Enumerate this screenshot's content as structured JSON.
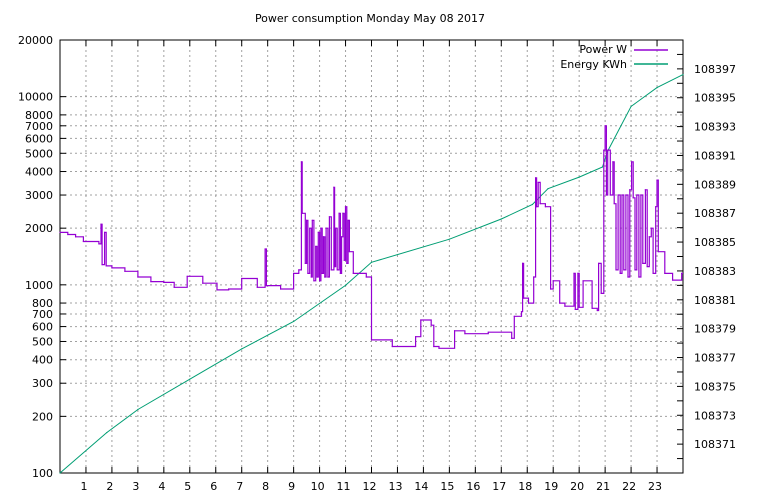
{
  "chart_data": {
    "type": "line",
    "title": "Power consumption Monday May 08 2017",
    "xlabel": "",
    "ylabel": "",
    "y2label": "",
    "xlim": [
      0,
      24
    ],
    "ylim": [
      100,
      20000
    ],
    "yscale": "log",
    "y2lim": [
      108369,
      108399
    ],
    "grid": true,
    "legend_position": "top-right",
    "x_ticks": [
      "1",
      "2",
      "3",
      "4",
      "5",
      "6",
      "7",
      "8",
      "9",
      "10",
      "11",
      "12",
      "13",
      "14",
      "15",
      "16",
      "17",
      "18",
      "19",
      "20",
      "21",
      "22",
      "23"
    ],
    "y_ticks": [
      "100",
      "200",
      "300",
      "400",
      "500",
      "600",
      "700",
      "800",
      "1000",
      "2000",
      "3000",
      "4000",
      "5000",
      "6000",
      "7000",
      "8000",
      "10000",
      "20000"
    ],
    "y2_ticks": [
      "108371",
      "108373",
      "108375",
      "108377",
      "108379",
      "108381",
      "108383",
      "108385",
      "108387",
      "108389",
      "108391",
      "108393",
      "108395",
      "108397"
    ],
    "series": [
      {
        "name": "Power W",
        "axis": "left",
        "style": "steps",
        "color": "#9400d3",
        "points": [
          [
            0,
            1900
          ],
          [
            0.3,
            1850
          ],
          [
            0.6,
            1800
          ],
          [
            0.9,
            1700
          ],
          [
            1.5,
            1650
          ],
          [
            1.58,
            2100
          ],
          [
            1.62,
            1280
          ],
          [
            1.72,
            1900
          ],
          [
            1.78,
            1260
          ],
          [
            2.0,
            1230
          ],
          [
            2.5,
            1180
          ],
          [
            3.0,
            1100
          ],
          [
            3.5,
            1040
          ],
          [
            4.0,
            1030
          ],
          [
            4.4,
            970
          ],
          [
            4.9,
            1110
          ],
          [
            5.5,
            1020
          ],
          [
            6.05,
            940
          ],
          [
            6.5,
            950
          ],
          [
            7.0,
            1080
          ],
          [
            7.6,
            970
          ],
          [
            7.9,
            1550
          ],
          [
            7.95,
            990
          ],
          [
            8.5,
            950
          ],
          [
            9.0,
            1150
          ],
          [
            9.2,
            1200
          ],
          [
            9.3,
            4500
          ],
          [
            9.33,
            2400
          ],
          [
            9.45,
            1300
          ],
          [
            9.5,
            2200
          ],
          [
            9.55,
            1150
          ],
          [
            9.62,
            2000
          ],
          [
            9.68,
            1100
          ],
          [
            9.72,
            2200
          ],
          [
            9.78,
            1050
          ],
          [
            9.85,
            1600
          ],
          [
            9.9,
            1100
          ],
          [
            9.95,
            1900
          ],
          [
            10.0,
            1050
          ],
          [
            10.05,
            2000
          ],
          [
            10.1,
            1150
          ],
          [
            10.15,
            1800
          ],
          [
            10.2,
            1100
          ],
          [
            10.25,
            2000
          ],
          [
            10.32,
            1100
          ],
          [
            10.38,
            2300
          ],
          [
            10.45,
            1200
          ],
          [
            10.55,
            3300
          ],
          [
            10.58,
            1250
          ],
          [
            10.62,
            2000
          ],
          [
            10.68,
            1200
          ],
          [
            10.75,
            2400
          ],
          [
            10.8,
            1150
          ],
          [
            10.85,
            1800
          ],
          [
            10.9,
            2400
          ],
          [
            10.95,
            1350
          ],
          [
            11.0,
            2600
          ],
          [
            11.05,
            1300
          ],
          [
            11.1,
            2200
          ],
          [
            11.15,
            1500
          ],
          [
            11.3,
            1150
          ],
          [
            11.8,
            1100
          ],
          [
            12.0,
            510
          ],
          [
            12.8,
            470
          ],
          [
            13.7,
            530
          ],
          [
            13.9,
            650
          ],
          [
            14.3,
            610
          ],
          [
            14.4,
            470
          ],
          [
            14.6,
            460
          ],
          [
            15.2,
            570
          ],
          [
            15.6,
            550
          ],
          [
            16.5,
            560
          ],
          [
            17.4,
            520
          ],
          [
            17.5,
            680
          ],
          [
            17.78,
            720
          ],
          [
            17.82,
            1300
          ],
          [
            17.86,
            850
          ],
          [
            18.05,
            800
          ],
          [
            18.25,
            1100
          ],
          [
            18.32,
            3700
          ],
          [
            18.36,
            2600
          ],
          [
            18.42,
            3500
          ],
          [
            18.5,
            2700
          ],
          [
            18.7,
            2600
          ],
          [
            18.9,
            950
          ],
          [
            19.0,
            1050
          ],
          [
            19.25,
            800
          ],
          [
            19.45,
            770
          ],
          [
            19.8,
            1150
          ],
          [
            19.85,
            740
          ],
          [
            19.95,
            1150
          ],
          [
            20.0,
            760
          ],
          [
            20.15,
            1050
          ],
          [
            20.5,
            750
          ],
          [
            20.7,
            730
          ],
          [
            20.75,
            1300
          ],
          [
            20.85,
            900
          ],
          [
            20.95,
            5200
          ],
          [
            21.0,
            7000
          ],
          [
            21.05,
            3000
          ],
          [
            21.1,
            5200
          ],
          [
            21.2,
            3000
          ],
          [
            21.3,
            4500
          ],
          [
            21.35,
            2700
          ],
          [
            21.42,
            1200
          ],
          [
            21.5,
            3000
          ],
          [
            21.58,
            1150
          ],
          [
            21.65,
            3000
          ],
          [
            21.72,
            1200
          ],
          [
            21.8,
            3000
          ],
          [
            21.88,
            1100
          ],
          [
            21.95,
            3200
          ],
          [
            22.02,
            4500
          ],
          [
            22.08,
            2900
          ],
          [
            22.15,
            1200
          ],
          [
            22.22,
            3000
          ],
          [
            22.3,
            1100
          ],
          [
            22.38,
            3000
          ],
          [
            22.45,
            1300
          ],
          [
            22.55,
            3200
          ],
          [
            22.62,
            1250
          ],
          [
            22.7,
            1800
          ],
          [
            22.78,
            2000
          ],
          [
            22.85,
            1150
          ],
          [
            22.95,
            2600
          ],
          [
            23.0,
            3600
          ],
          [
            23.05,
            1500
          ],
          [
            23.3,
            1150
          ],
          [
            23.6,
            1060
          ],
          [
            23.95,
            1150
          ]
        ]
      },
      {
        "name": "Energy KWh",
        "axis": "right",
        "style": "lines",
        "color": "#009e73",
        "points": [
          [
            0,
            108369.0
          ],
          [
            1.8,
            108371.8
          ],
          [
            3,
            108373.4
          ],
          [
            5,
            108375.5
          ],
          [
            7,
            108377.6
          ],
          [
            9,
            108379.5
          ],
          [
            11,
            108382.0
          ],
          [
            12,
            108383.6
          ],
          [
            15,
            108385.2
          ],
          [
            17,
            108386.6
          ],
          [
            18.2,
            108387.6
          ],
          [
            18.8,
            108388.7
          ],
          [
            20,
            108389.5
          ],
          [
            20.9,
            108390.2
          ],
          [
            21.1,
            108391.3
          ],
          [
            22,
            108394.4
          ],
          [
            23,
            108395.7
          ],
          [
            24,
            108396.6
          ]
        ]
      }
    ]
  }
}
